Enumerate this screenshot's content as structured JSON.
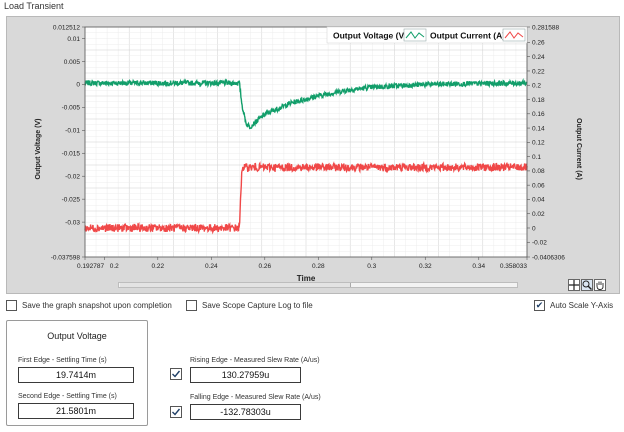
{
  "window": {
    "title": "Load Transient"
  },
  "plot": {
    "legend": [
      {
        "label": "Output Voltage (V)",
        "color": "#129e6a"
      },
      {
        "label": "Output Current (A)",
        "color": "#f04848"
      }
    ]
  },
  "chart_data": {
    "type": "line",
    "xlabel": "Time",
    "ylabel": "Output Voltage (V)",
    "y2label": "Output Current (A)",
    "xlim": [
      0.192787,
      0.358033
    ],
    "ylim": [
      -0.037598,
      0.012512
    ],
    "y2lim": [
      -0.0406306,
      0.281588
    ],
    "x_ticks": [
      "0.192787",
      "0.2",
      "0.22",
      "0.24",
      "0.26",
      "0.28",
      "0.3",
      "0.32",
      "0.34",
      "0.358033"
    ],
    "y_ticks": [
      "0.012512",
      "0.01",
      "0.005",
      "0",
      "-0.005",
      "-0.01",
      "-0.015",
      "-0.02",
      "-0.025",
      "-0.03",
      "-0.037598"
    ],
    "y2_ticks": [
      "0.281588",
      "0.26",
      "0.24",
      "0.22",
      "0.2",
      "0.18",
      "0.16",
      "0.14",
      "0.12",
      "0.1",
      "0.08",
      "0.06",
      "0.04",
      "0.02",
      "0",
      "-0.02",
      "-0.0406306"
    ],
    "grid": true,
    "legend_position": "top-right",
    "series": [
      {
        "name": "Output Voltage (V)",
        "color": "#129e6a",
        "axis": "left",
        "x": [
          0.192787,
          0.22,
          0.2505,
          0.2515,
          0.253,
          0.2545,
          0.26,
          0.27,
          0.28,
          0.29,
          0.3,
          0.32,
          0.34,
          0.358033
        ],
        "y": [
          0.0003,
          0.0003,
          0.0003,
          -0.0045,
          -0.0085,
          -0.0092,
          -0.0065,
          -0.004,
          -0.0025,
          -0.0013,
          -0.0006,
          0.0,
          0.0002,
          0.0003
        ],
        "noise": 0.0011
      },
      {
        "name": "Output Current (A)",
        "color": "#f04848",
        "axis": "right",
        "x": [
          0.192787,
          0.2505,
          0.2515,
          0.358033
        ],
        "y": [
          0.0,
          0.0,
          0.085,
          0.085
        ],
        "noise": 0.011
      }
    ]
  },
  "options": {
    "save_snapshot": {
      "label": "Save the graph snapshot upon completion",
      "checked": false
    },
    "save_scope_log": {
      "label": "Save Scope Capture Log to file",
      "checked": false
    },
    "auto_scale": {
      "label": "Auto Scale Y-Axis",
      "checked": true
    }
  },
  "results": {
    "title": "Output Voltage",
    "first_edge": {
      "label": "First Edge - Settling Time (s)",
      "value": "19.7414m"
    },
    "second_edge": {
      "label": "Second Edge - Settling Time (s)",
      "value": "21.5801m"
    },
    "rising": {
      "label": "Rising Edge - Measured Slew Rate (A/us)",
      "value": "130.27959u",
      "checked": true
    },
    "falling": {
      "label": "Falling Edge - Measured Slew Rate (A/us)",
      "value": "-132.78303u",
      "checked": true
    }
  },
  "palette_icons": [
    "crosshair-icon",
    "zoom-icon",
    "pan-hand-icon"
  ]
}
